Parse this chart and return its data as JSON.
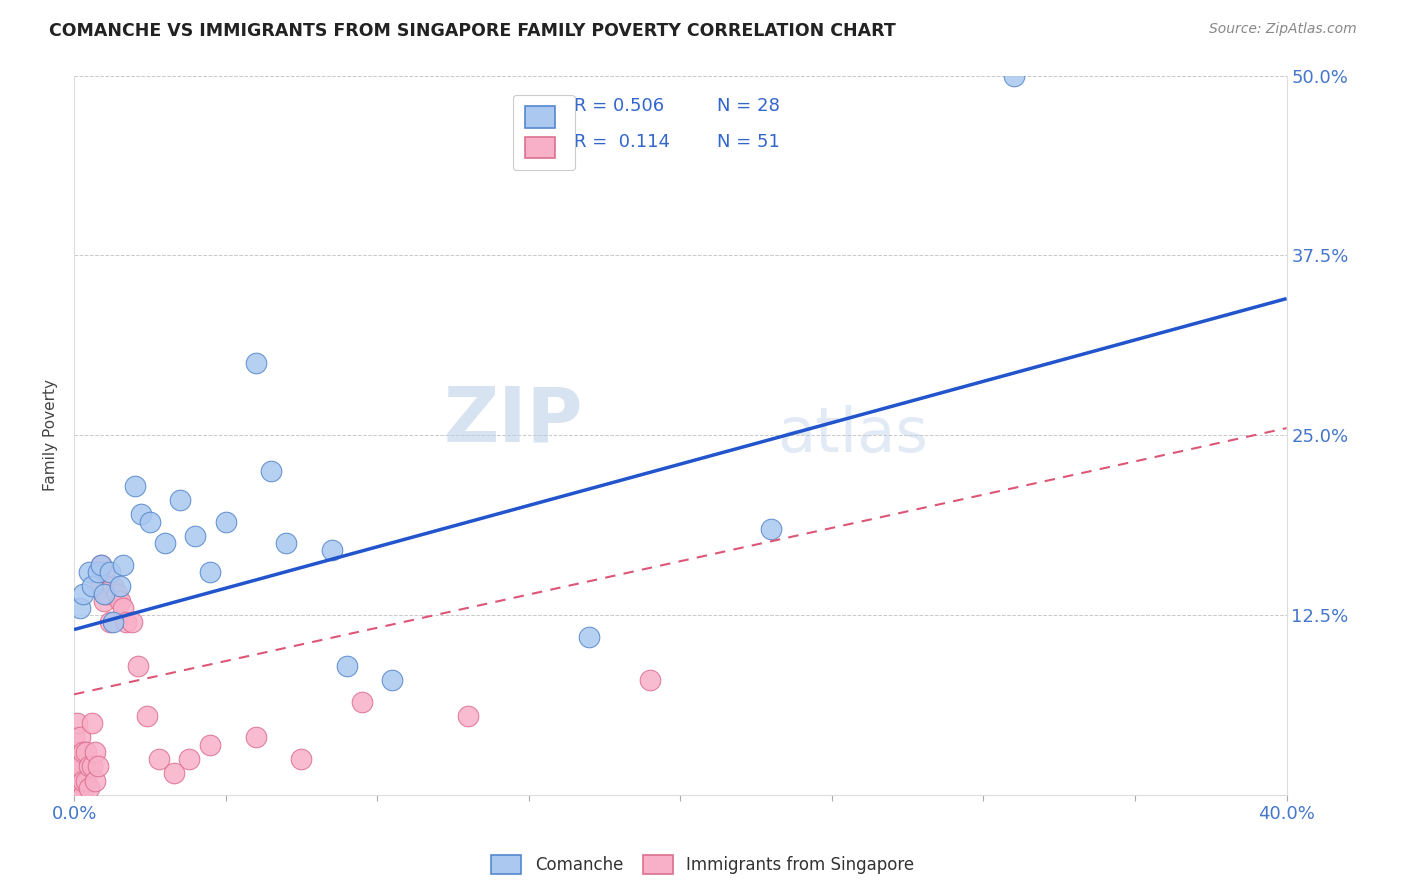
{
  "title": "COMANCHE VS IMMIGRANTS FROM SINGAPORE FAMILY POVERTY CORRELATION CHART",
  "source": "Source: ZipAtlas.com",
  "ylabel": "Family Poverty",
  "xlim": [
    0,
    0.4
  ],
  "ylim": [
    0,
    0.5
  ],
  "xticks": [
    0.0,
    0.05,
    0.1,
    0.15,
    0.2,
    0.25,
    0.3,
    0.35,
    0.4
  ],
  "yticks": [
    0.0,
    0.125,
    0.25,
    0.375,
    0.5
  ],
  "legend_r1": "R = 0.506",
  "legend_n1": "N = 28",
  "legend_r2": "R =  0.114",
  "legend_n2": "N = 51",
  "comanche_color": "#aac8f0",
  "comanche_edge": "#5588cc",
  "singapore_color": "#f8b0c8",
  "singapore_edge": "#dd7090",
  "trend_blue": "#2255cc",
  "trend_pink": "#dd5577",
  "watermark": "ZIPatlas",
  "blue_line_x0": 0.0,
  "blue_line_y0": 0.115,
  "blue_line_x1": 0.4,
  "blue_line_y1": 0.345,
  "pink_line_x0": 0.0,
  "pink_line_y0": 0.07,
  "pink_line_x1": 0.4,
  "pink_line_y1": 0.255,
  "comanche_x": [
    0.002,
    0.003,
    0.005,
    0.006,
    0.008,
    0.009,
    0.01,
    0.012,
    0.013,
    0.015,
    0.016,
    0.02,
    0.022,
    0.025,
    0.03,
    0.035,
    0.04,
    0.045,
    0.05,
    0.06,
    0.065,
    0.07,
    0.085,
    0.09,
    0.105,
    0.17,
    0.23,
    0.31
  ],
  "comanche_y": [
    0.13,
    0.14,
    0.155,
    0.145,
    0.155,
    0.16,
    0.14,
    0.155,
    0.12,
    0.145,
    0.16,
    0.215,
    0.195,
    0.19,
    0.175,
    0.205,
    0.18,
    0.155,
    0.19,
    0.3,
    0.225,
    0.175,
    0.17,
    0.09,
    0.08,
    0.11,
    0.185,
    0.5
  ],
  "singapore_x": [
    0.0,
    0.0,
    0.0,
    0.0,
    0.0,
    0.0,
    0.001,
    0.001,
    0.001,
    0.001,
    0.001,
    0.001,
    0.002,
    0.002,
    0.002,
    0.002,
    0.003,
    0.003,
    0.003,
    0.004,
    0.004,
    0.005,
    0.005,
    0.006,
    0.006,
    0.007,
    0.007,
    0.008,
    0.009,
    0.009,
    0.01,
    0.01,
    0.011,
    0.012,
    0.013,
    0.014,
    0.015,
    0.016,
    0.017,
    0.019,
    0.021,
    0.024,
    0.028,
    0.033,
    0.038,
    0.045,
    0.06,
    0.075,
    0.095,
    0.13,
    0.19
  ],
  "singapore_y": [
    0.0,
    0.005,
    0.01,
    0.02,
    0.03,
    0.04,
    0.0,
    0.005,
    0.01,
    0.02,
    0.03,
    0.05,
    0.0,
    0.01,
    0.02,
    0.04,
    0.0,
    0.01,
    0.03,
    0.01,
    0.03,
    0.005,
    0.02,
    0.02,
    0.05,
    0.01,
    0.03,
    0.02,
    0.145,
    0.16,
    0.135,
    0.155,
    0.14,
    0.12,
    0.145,
    0.14,
    0.135,
    0.13,
    0.12,
    0.12,
    0.09,
    0.055,
    0.025,
    0.015,
    0.025,
    0.035,
    0.04,
    0.025,
    0.065,
    0.055,
    0.08
  ]
}
